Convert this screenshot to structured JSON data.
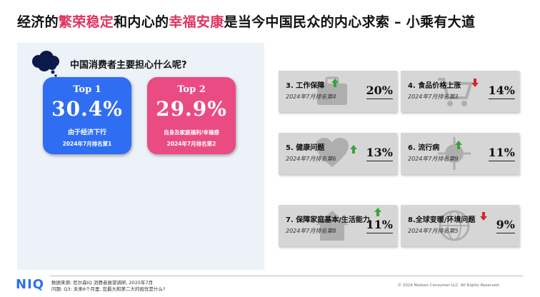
{
  "title": {
    "p1": "经济的",
    "h1": "繁荣稳定",
    "p2": "和内心的",
    "h2": "幸福安康",
    "p3": "是当今中国民众的内心求索 – 小乘有大道"
  },
  "question": "中国消费者主要担心什么呢?",
  "highlight_color": "#e0345e",
  "top_cards": [
    {
      "rank": "Top 1",
      "percent": "30.4%",
      "label": "由于经济下行",
      "rank_sub": "2024年7月排名第1",
      "color": "#2f6ef2"
    },
    {
      "rank": "Top 2",
      "percent": "29.9%",
      "label": "自身及家庭福利/幸福感",
      "rank_sub": "2024年7月排名第2",
      "color": "#ea4b82"
    }
  ],
  "concerns": [
    {
      "title": "3. 工作保障",
      "sub": "2024年7月排名第4",
      "percent": "20%",
      "trend": "up",
      "icon": "briefcase-icon"
    },
    {
      "title": "4. 食品价格上涨",
      "sub": "2024年7月排名第3",
      "percent": "14%",
      "trend": "down",
      "icon": "shopping-cart-icon"
    },
    {
      "title": "5. 健康问题",
      "sub": "2024年7月排名第6",
      "percent": "13%",
      "trend": "up",
      "icon": "heartbeat-icon"
    },
    {
      "title": "6. 流行病",
      "sub": "2024年7月排名第9",
      "percent": "11%",
      "trend": "up",
      "icon": "virus-icon"
    },
    {
      "title": "7. 保障家庭基本/生活能力",
      "sub": "2024年7月排名第8",
      "percent": "11%",
      "trend": "up",
      "icon": "house-icon"
    },
    {
      "title": "8.全球变暖/环境问题",
      "sub": "2024年7月排名第5",
      "percent": "9%",
      "trend": "down",
      "icon": "globe-icon"
    }
  ],
  "trend_colors": {
    "up": "#3aa33a",
    "down": "#d8242d"
  },
  "footer": {
    "logo": "NIQ",
    "source_line1": "数据来源: 尼尔森IQ 消费者展望调研, 2025年7月",
    "source_line2": "问题: Q3: 未来6个月里, 您最大和第二大的担忧是什么?",
    "copyright": "© 2024 Nielsen Consumer LLC. All Rights Reserved."
  }
}
